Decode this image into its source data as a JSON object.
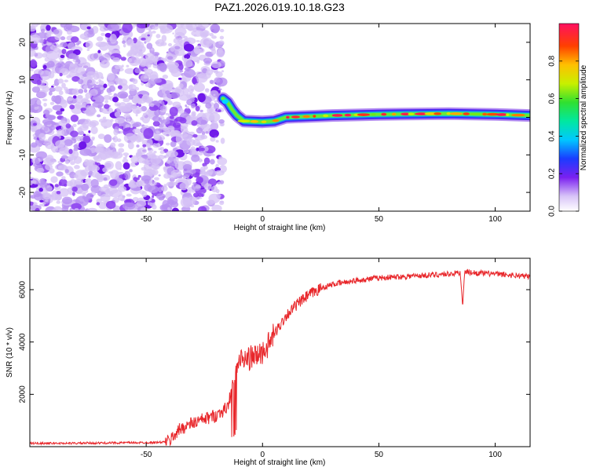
{
  "figure": {
    "title": "PAZ1.2026.019.10.18.G23"
  },
  "chart_data": [
    {
      "type": "heatmap",
      "xlabel": "Height of straight line (km)",
      "ylabel": "Frequency (Hz)",
      "xlim": [
        -100,
        115
      ],
      "ylim": [
        -25,
        25
      ],
      "xticks": [
        -50,
        0,
        50,
        100
      ],
      "yticks": [
        -20,
        -10,
        0,
        10,
        20
      ],
      "xtick_labels": [
        "-50",
        "0",
        "50",
        "100"
      ],
      "ytick_labels": [
        "-20",
        "-10",
        "0",
        "10",
        "20"
      ],
      "colorbar": {
        "label": "Normalized spectral amplitude",
        "range": [
          0,
          1
        ],
        "ticks": [
          0.0,
          0.2,
          0.4,
          0.6,
          0.8
        ],
        "tick_labels": [
          "0.0",
          "0.2",
          "0.4",
          "0.6",
          "0.8"
        ],
        "colormap": "rainbow"
      },
      "noise_region": {
        "x_range": [
          -100,
          -17
        ],
        "f_range": [
          -25,
          25
        ],
        "amplitude": 0.1
      },
      "ridge": [
        {
          "x": -17,
          "f": 5.0
        },
        {
          "x": -15,
          "f": 4.0
        },
        {
          "x": -13,
          "f": 2.0
        },
        {
          "x": -11,
          "f": 0.5
        },
        {
          "x": -8,
          "f": -1.0
        },
        {
          "x": 0,
          "f": -1.2
        },
        {
          "x": 5,
          "f": -1.0
        },
        {
          "x": 10,
          "f": 0.0
        },
        {
          "x": 30,
          "f": 0.5
        },
        {
          "x": 50,
          "f": 0.8
        },
        {
          "x": 80,
          "f": 1.0
        },
        {
          "x": 100,
          "f": 0.8
        },
        {
          "x": 115,
          "f": 0.5
        }
      ]
    },
    {
      "type": "line",
      "xlabel": "Height of straight line (km)",
      "ylabel": "SNR (10 * v/v)",
      "xlim": [
        -100,
        115
      ],
      "ylim": [
        0,
        7200
      ],
      "xticks": [
        -50,
        0,
        50,
        100
      ],
      "yticks": [
        2000,
        4000,
        6000
      ],
      "xtick_labels": [
        "-50",
        "0",
        "50",
        "100"
      ],
      "ytick_labels": [
        "2000",
        "4000",
        "6000"
      ],
      "series": [
        {
          "name": "SNR",
          "color": "#e8262a",
          "x": [
            -100,
            -80,
            -60,
            -45,
            -40,
            -38,
            -35,
            -30,
            -25,
            -20,
            -15,
            -12,
            -10,
            -8,
            -5,
            -3,
            0,
            3,
            5,
            8,
            10,
            15,
            20,
            25,
            30,
            40,
            50,
            60,
            70,
            80,
            85,
            86,
            87,
            90,
            100,
            115
          ],
          "y": [
            130,
            130,
            150,
            160,
            200,
            450,
            700,
            900,
            1050,
            1200,
            1500,
            2700,
            3300,
            3300,
            3400,
            3450,
            3600,
            3950,
            4300,
            4700,
            5000,
            5450,
            5800,
            6050,
            6200,
            6350,
            6450,
            6500,
            6550,
            6600,
            6650,
            5500,
            6700,
            6650,
            6600,
            6500
          ]
        }
      ]
    }
  ]
}
